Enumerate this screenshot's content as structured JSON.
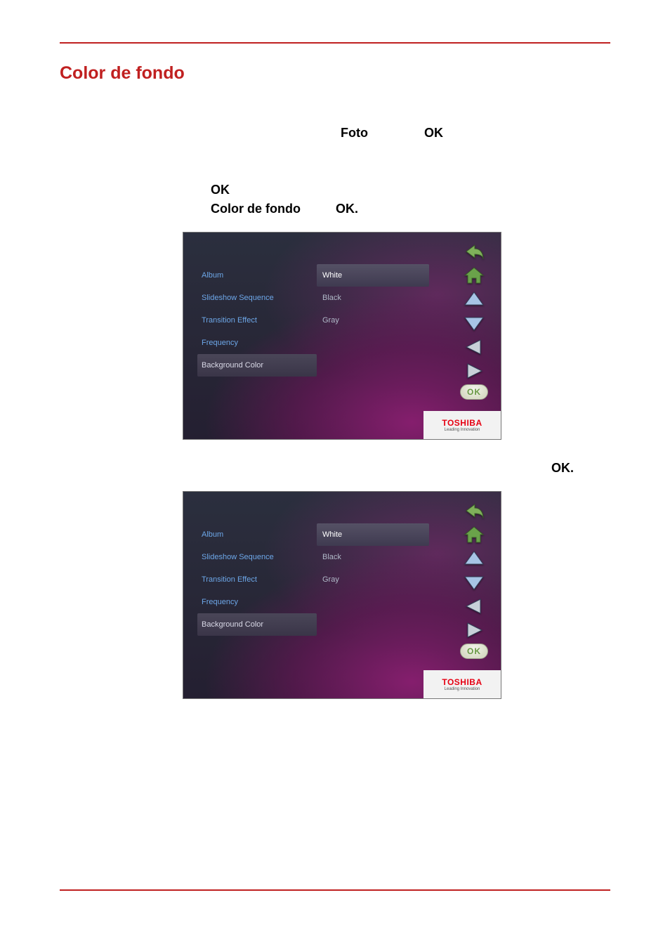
{
  "section_title": "Color de fondo",
  "line1": {
    "a": "Foto",
    "b": "OK"
  },
  "line2": {
    "a": "OK"
  },
  "line3": {
    "a": "Color de fondo",
    "b": "OK."
  },
  "step4": "OK.",
  "screenshot": {
    "menu_items": [
      {
        "label": "Album",
        "selected": false
      },
      {
        "label": "Slideshow Sequence",
        "selected": false
      },
      {
        "label": "Transition Effect",
        "selected": false
      },
      {
        "label": "Frequency",
        "selected": false
      },
      {
        "label": "Background Color",
        "selected": true
      }
    ],
    "option_items": [
      {
        "label": "White",
        "selected": true
      },
      {
        "label": "Black",
        "selected": false
      },
      {
        "label": "Gray",
        "selected": false
      }
    ],
    "ok_label": "OK",
    "brand": "TOSHIBA",
    "brand_tag": "Leading Innovation",
    "colors": {
      "menu_text": "#6da7e8",
      "menu_selected_bg": "#3f3a50",
      "menu_selected_text": "#d8d8e6",
      "opt_text": "#b0b9c8",
      "opt_selected_text": "#ffffff",
      "brand_red": "#e60012",
      "panel_bg": "#2a2f3c",
      "arrow_blue": "#5b88c4",
      "arrow_blue_light": "#a7c4e6",
      "arrow_gray": "#8e9aa4",
      "arrow_gray_light": "#c8d0d8",
      "home_green": "#6aa24a",
      "back_green": "#7fb05a"
    }
  }
}
